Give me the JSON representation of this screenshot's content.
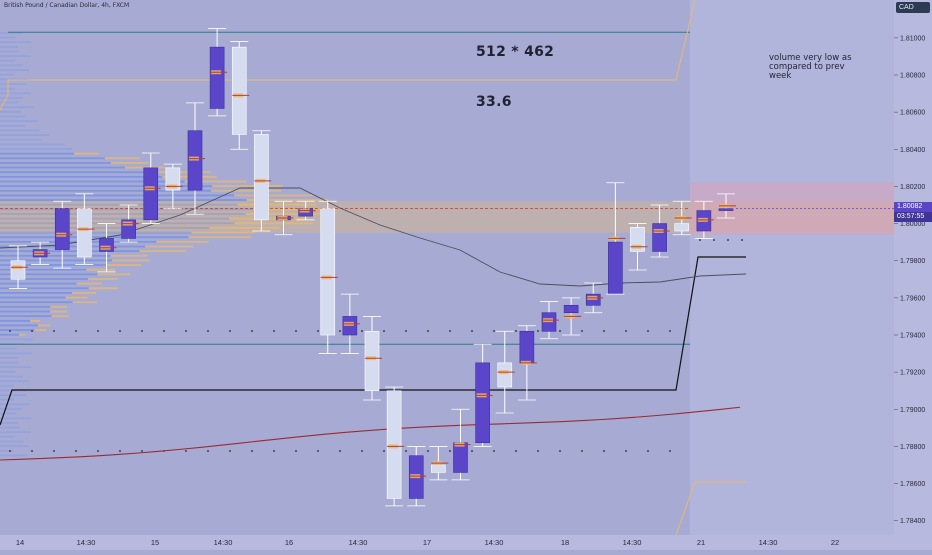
{
  "header": {
    "symbol_title": "British Pound / Canadian Dollar, 4h, FXCM",
    "currency": "CAD"
  },
  "annotations": {
    "calc": "512 * 462",
    "result": "33.6",
    "note": "volume very low as compared to prev week"
  },
  "price_tag": {
    "price": "1.80082",
    "countdown": "03:57:55"
  },
  "colors": {
    "background": "#a7abd3",
    "bull_candle": "#5b46c9",
    "bear_candle": "#d6dcef",
    "profile_blue": "#6f8fe8",
    "profile_orange": "#e9b96e",
    "poc": "#c0392b",
    "vwap_red": "#9a2a35",
    "ma_gray": "#4b4f5e",
    "level_line": "#111111",
    "teal_line": "#2f7a8a"
  },
  "chart_data": {
    "type": "candlestick",
    "title": "British Pound / Canadian Dollar, 4h, FXCM",
    "ylim": [
      1.7835,
      1.8115
    ],
    "y_ticks": [
      "1.81000",
      "1.80800",
      "1.80600",
      "1.80400",
      "1.80200",
      "1.80000",
      "1.79800",
      "1.79600",
      "1.79400",
      "1.79200",
      "1.79000",
      "1.78800",
      "1.78600",
      "1.78400"
    ],
    "x_ticks": [
      "14",
      "14:30",
      "15",
      "14:30",
      "16",
      "14:30",
      "17",
      "14:30",
      "18",
      "14:30",
      "21",
      "14:30",
      "22"
    ],
    "candles": [
      {
        "o": 1.798,
        "h": 1.7988,
        "l": 1.7965,
        "c": 1.797
      },
      {
        "o": 1.7982,
        "h": 1.799,
        "l": 1.7978,
        "c": 1.7986
      },
      {
        "o": 1.7986,
        "h": 1.8012,
        "l": 1.7976,
        "c": 1.8008
      },
      {
        "o": 1.8008,
        "h": 1.8016,
        "l": 1.7978,
        "c": 1.7982
      },
      {
        "o": 1.7985,
        "h": 1.8,
        "l": 1.7974,
        "c": 1.7992
      },
      {
        "o": 1.7992,
        "h": 1.801,
        "l": 1.799,
        "c": 1.8002
      },
      {
        "o": 1.8002,
        "h": 1.8038,
        "l": 1.8,
        "c": 1.803
      },
      {
        "o": 1.803,
        "h": 1.8032,
        "l": 1.8008,
        "c": 1.8018
      },
      {
        "o": 1.8018,
        "h": 1.8065,
        "l": 1.8005,
        "c": 1.805
      },
      {
        "o": 1.8062,
        "h": 1.8105,
        "l": 1.8058,
        "c": 1.8095
      },
      {
        "o": 1.8095,
        "h": 1.8098,
        "l": 1.804,
        "c": 1.8048
      },
      {
        "o": 1.8048,
        "h": 1.805,
        "l": 1.7996,
        "c": 1.8002
      },
      {
        "o": 1.8002,
        "h": 1.8012,
        "l": 1.7994,
        "c": 1.8004
      },
      {
        "o": 1.8004,
        "h": 1.8012,
        "l": 1.8002,
        "c": 1.8008
      },
      {
        "o": 1.8008,
        "h": 1.8012,
        "l": 1.793,
        "c": 1.794
      },
      {
        "o": 1.794,
        "h": 1.7962,
        "l": 1.793,
        "c": 1.795
      },
      {
        "o": 1.7942,
        "h": 1.795,
        "l": 1.7905,
        "c": 1.791
      },
      {
        "o": 1.791,
        "h": 1.7912,
        "l": 1.7848,
        "c": 1.7852
      },
      {
        "o": 1.7852,
        "h": 1.788,
        "l": 1.7848,
        "c": 1.7875
      },
      {
        "o": 1.787,
        "h": 1.788,
        "l": 1.7862,
        "c": 1.7866
      },
      {
        "o": 1.7866,
        "h": 1.79,
        "l": 1.7862,
        "c": 1.7882
      },
      {
        "o": 1.7882,
        "h": 1.7935,
        "l": 1.788,
        "c": 1.7925
      },
      {
        "o": 1.7925,
        "h": 1.7942,
        "l": 1.7898,
        "c": 1.7912
      },
      {
        "o": 1.7925,
        "h": 1.7945,
        "l": 1.7905,
        "c": 1.7942
      },
      {
        "o": 1.7942,
        "h": 1.7958,
        "l": 1.7938,
        "c": 1.7952
      },
      {
        "o": 1.7952,
        "h": 1.796,
        "l": 1.794,
        "c": 1.7956
      },
      {
        "o": 1.7956,
        "h": 1.7968,
        "l": 1.7952,
        "c": 1.7962
      },
      {
        "o": 1.7962,
        "h": 1.8022,
        "l": 1.7962,
        "c": 1.799
      },
      {
        "o": 1.7998,
        "h": 1.8,
        "l": 1.7975,
        "c": 1.7985
      },
      {
        "o": 1.7985,
        "h": 1.801,
        "l": 1.7982,
        "c": 1.8
      },
      {
        "o": 1.8,
        "h": 1.8012,
        "l": 1.7994,
        "c": 1.7996
      },
      {
        "o": 1.7996,
        "h": 1.8012,
        "l": 1.7992,
        "c": 1.8007
      },
      {
        "o": 1.8007,
        "h": 1.8016,
        "l": 1.8003,
        "c": 1.8008
      }
    ],
    "lines": {
      "level_top": 1.8103,
      "level_mid": 1.7935,
      "prev_close_right": 1.7982
    },
    "volume_profile": {
      "poc_price": 1.80082,
      "range": [
        1.7875,
        1.8103
      ]
    }
  }
}
